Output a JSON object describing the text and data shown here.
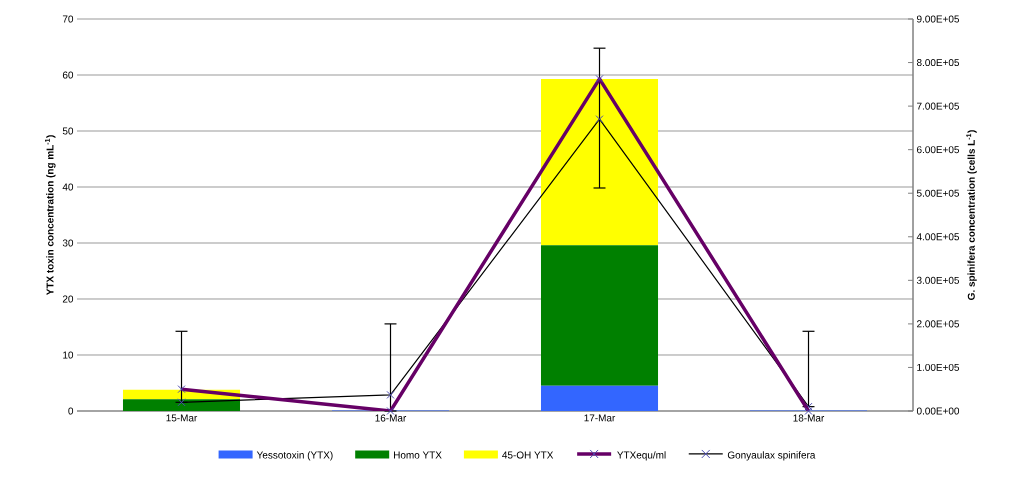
{
  "chart_data": {
    "type": "bar",
    "stacked": true,
    "categories": [
      "15-Mar",
      "16-Mar",
      "17-Mar",
      "18-Mar"
    ],
    "ylabel": "YTX toxin concentration (ng mL$^{-1}$)",
    "y2label": "G. spinifera concentration (cells L$^{-1}$)",
    "ylim": [
      0,
      70
    ],
    "yticks": [
      0,
      10,
      20,
      30,
      40,
      50,
      60,
      70
    ],
    "y2lim": [
      0,
      900000
    ],
    "y2ticks": [
      {
        "value": 0,
        "label": "0.00E+00"
      },
      {
        "value": 100000,
        "label": "1.00E+05"
      },
      {
        "value": 200000,
        "label": "2.00E+05"
      },
      {
        "value": 300000,
        "label": "3.00E+05"
      },
      {
        "value": 400000,
        "label": "4.00E+05"
      },
      {
        "value": 500000,
        "label": "5.00E+05"
      },
      {
        "value": 600000,
        "label": "6.00E+05"
      },
      {
        "value": 700000,
        "label": "7.00E+05"
      },
      {
        "value": 800000,
        "label": "8.00E+05"
      },
      {
        "value": 900000,
        "label": "9.00E+05"
      }
    ],
    "grid": "y",
    "legend": "bottom",
    "marker": "cross",
    "series": [
      {
        "name": "Yessotoxin (YTX)",
        "color": "#3366ff",
        "values": [
          0,
          0.1,
          4.5,
          0.1
        ]
      },
      {
        "name": "Homo YTX",
        "color": "#008000",
        "values": [
          2.1,
          0,
          25.1,
          0
        ]
      },
      {
        "name": "45-OH YTX",
        "color": "#ffff00",
        "values": [
          1.7,
          0,
          29.7,
          0
        ]
      },
      {
        "name": "YTXequ/ml",
        "type": "line",
        "color": "#660066",
        "values": [
          3.9,
          0,
          59.3,
          0
        ]
      },
      {
        "name": "Gonyaulax spinifera",
        "type": "line",
        "axis": "y2",
        "color": "#000000",
        "values": [
          20000,
          37000,
          670000,
          10000
        ],
        "errors": [
          [
            20000,
            183000
          ],
          [
            0,
            200000
          ],
          [
            512000,
            833000
          ],
          [
            10000,
            183000
          ]
        ]
      }
    ]
  }
}
